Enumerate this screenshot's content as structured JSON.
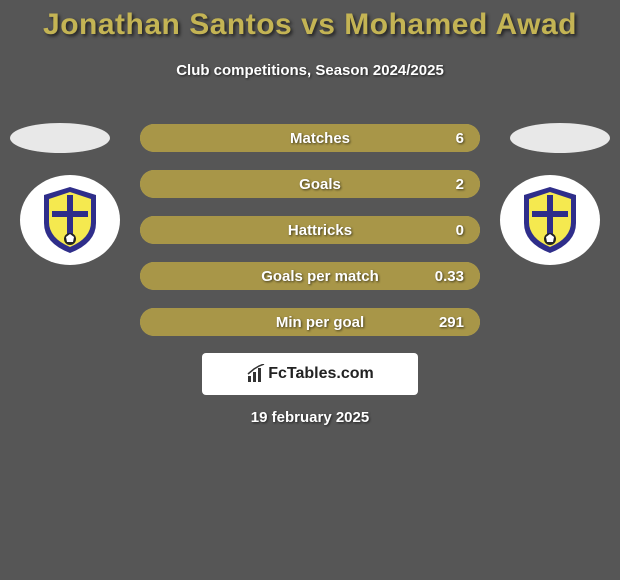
{
  "background_color": "#565656",
  "accent_color": "#c4b454",
  "title": {
    "text": "Jonathan Santos vs Mohamed Awad",
    "color": "#c4b454",
    "fontsize": 30
  },
  "subtitle": {
    "text": "Club competitions, Season 2024/2025",
    "color": "#ffffff",
    "fontsize": 15
  },
  "oval_color": "#e8e8e8",
  "crest": {
    "outer_color": "#2f2e8a",
    "inner_color": "#f5e94f",
    "cross_color": "#2f2e8a",
    "ball_color": "#222222"
  },
  "row_bg_color": "#c4b454",
  "row_fill_color": "#a89648",
  "row_label_color": "#ffffff",
  "row_value_color": "#ffffff",
  "rows": [
    {
      "label": "Matches",
      "value": "6",
      "fill_pct": 100
    },
    {
      "label": "Goals",
      "value": "2",
      "fill_pct": 100
    },
    {
      "label": "Hattricks",
      "value": "0",
      "fill_pct": 100
    },
    {
      "label": "Goals per match",
      "value": "0.33",
      "fill_pct": 100
    },
    {
      "label": "Min per goal",
      "value": "291",
      "fill_pct": 100
    }
  ],
  "branding": {
    "text": "FcTables.com",
    "bg_color": "#ffffff",
    "text_color": "#222222",
    "icon_color": "#333333"
  },
  "date": {
    "text": "19 february 2025",
    "color": "#ffffff"
  }
}
